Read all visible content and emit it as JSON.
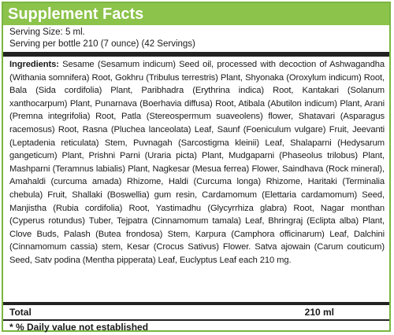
{
  "facts": {
    "title": "Supplement Facts",
    "serving_size": "Serving Size:  5 ml.",
    "servings_per_bottle": "Serving per bottle 210 (7 ounce) (42 Servings)",
    "ingredients_label": "Ingredients:",
    "ingredients_text": " Sesame (Sesamum indicum) Seed oil, processed with decoction of Ashwagandha (Withania somnifera) Root, Gokhru (Tribulus terrestris) Plant, Shyonaka (Oroxylum indicum) Root, Bala (Sida cordifolia) Plant, Paribhadra (Erythrina indica) Root, Kantakari (Solanum xanthocarpum) Plant, Punarnava (Boerhavia diffusa) Root, Atibala (Abutilon indicum) Plant, Arani (Premna integrifolia) Root, Patla (Stereospermum suaveolens) flower, Shatavari (Asparagus racemosus) Root, Rasna (Pluchea lanceolata) Leaf, Saunf (Foeniculum vulgare) Fruit, Jeevanti (Leptadenia reticulata) Stem, Puvnagah (Sarcostigma kleinii) Leaf, Shalaparni (Hedysarum gangeticum) Plant, Prishni Parni (Uraria picta) Plant, Mudgaparni (Phaseolus trilobus) Plant, Mashparni (Teramnus labialis) Plant, Nagkesar (Mesua ferrea) Flower, Saindhava (Rock mineral), Amahaldi (curcuma amada) Rhizome, Haldi (Curcuma longa) Rhizome, Haritaki (Terminalia chebula) Fruit, Shallaki (Boswellia) gum resin, Cardamomum (Elettaria cardamomum) Seed, Manjistha (Rubia cordifolia) Root, Yastimadhu (Glycyrrhiza glabra) Root, Nagar monthan (Cyperus rotundus) Tuber, Tejpatra (Cinnamomum tamala) Leaf, Bhringraj (Eclipta alba) Plant, Clove Buds, Palash (Butea frondosa) Stem, Karpura (Camphora officinarum) Leaf, Dalchini (Cinnamomum cassia) stem, Kesar (Crocus Sativus) Flower. Satva ajowain (Carum couticum) Seed, Satv podina (Mentha pipperata) Leaf, Euclyptus Leaf each 210 mg.",
    "total_label": "Total",
    "total_value": "210 ml",
    "footnote": "* % Daily value not established"
  },
  "colors": {
    "header_bg": "#8cc34a",
    "border": "#7ab640",
    "rule": "#222222"
  }
}
